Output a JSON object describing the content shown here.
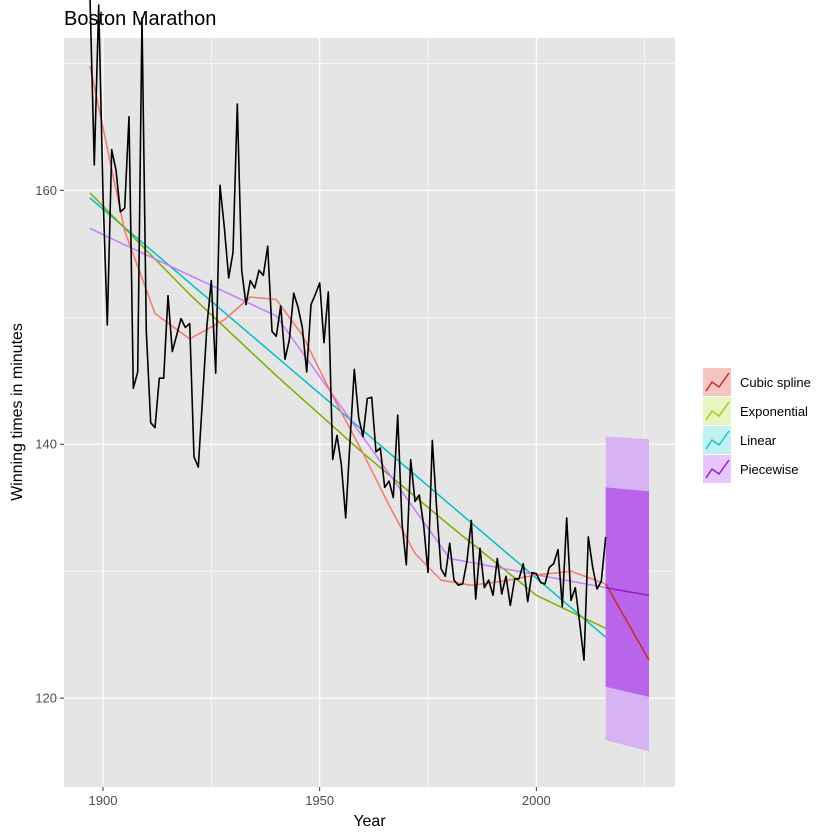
{
  "chart_data": {
    "type": "line",
    "title": "Boston Marathon",
    "xlabel": "Year",
    "ylabel": "Winning times in minutes",
    "xlim": [
      1891,
      2032
    ],
    "ylim": [
      113,
      172
    ],
    "x_ticks": [
      1900,
      1950,
      2000
    ],
    "y_ticks": [
      120,
      140,
      160
    ],
    "grid": true,
    "legend": "right",
    "colors": {
      "panel": "#e5e5e5",
      "grid": "#ffffff",
      "observed": "#000000",
      "cubic": "#f8766d",
      "exponential": "#7cae00",
      "linear": "#00bfc4",
      "piecewise": "#c77cff"
    },
    "observed": {
      "x": [
        1897,
        1898,
        1899,
        1900,
        1901,
        1902,
        1903,
        1904,
        1905,
        1906,
        1907,
        1908,
        1909,
        1910,
        1911,
        1912,
        1913,
        1914,
        1915,
        1916,
        1917,
        1918,
        1919,
        1920,
        1921,
        1922,
        1923,
        1924,
        1925,
        1926,
        1927,
        1928,
        1929,
        1930,
        1931,
        1932,
        1933,
        1934,
        1935,
        1936,
        1937,
        1938,
        1939,
        1940,
        1941,
        1942,
        1943,
        1944,
        1945,
        1946,
        1947,
        1948,
        1949,
        1950,
        1951,
        1952,
        1953,
        1954,
        1955,
        1956,
        1957,
        1958,
        1959,
        1960,
        1961,
        1962,
        1963,
        1964,
        1965,
        1966,
        1967,
        1968,
        1969,
        1970,
        1971,
        1972,
        1973,
        1974,
        1975,
        1976,
        1977,
        1978,
        1979,
        1980,
        1981,
        1982,
        1983,
        1984,
        1985,
        1986,
        1987,
        1988,
        1989,
        1990,
        1991,
        1992,
        1993,
        1994,
        1995,
        1996,
        1997,
        1998,
        1999,
        2000,
        2001,
        2002,
        2003,
        2004,
        2005,
        2006,
        2007,
        2008,
        2009,
        2010,
        2011,
        2012,
        2013,
        2014,
        2015,
        2016
      ],
      "y": [
        175.2,
        162.0,
        174.6,
        159.7,
        149.4,
        163.2,
        161.6,
        158.3,
        158.6,
        165.8,
        144.4,
        145.7,
        173.6,
        148.9,
        141.7,
        141.3,
        145.2,
        145.2,
        151.7,
        147.3,
        148.6,
        149.9,
        149.2,
        149.5,
        139.0,
        138.2,
        143.8,
        149.4,
        152.9,
        145.6,
        160.4,
        157.1,
        153.1,
        155.1,
        166.8,
        153.7,
        151.0,
        152.9,
        152.3,
        153.7,
        153.3,
        155.6,
        148.9,
        148.5,
        150.9,
        146.7,
        148.2,
        151.9,
        150.8,
        149.2,
        145.7,
        151.0,
        151.8,
        152.7,
        148.0,
        152.0,
        138.8,
        140.7,
        138.4,
        134.2,
        140.2,
        145.9,
        142.1,
        140.6,
        143.6,
        143.7,
        139.4,
        139.7,
        136.6,
        137.1,
        135.8,
        142.3,
        133.8,
        130.5,
        138.8,
        135.5,
        136.0,
        133.6,
        129.9,
        140.3,
        134.9,
        130.2,
        129.6,
        132.2,
        129.3,
        128.9,
        129.0,
        130.8,
        134.0,
        127.8,
        131.8,
        128.7,
        129.3,
        128.1,
        131.0,
        128.2,
        129.6,
        127.3,
        129.4,
        129.4,
        130.6,
        127.6,
        129.9,
        129.8,
        129.1,
        129.0,
        130.3,
        130.6,
        131.7,
        127.2,
        134.2,
        127.7,
        128.7,
        125.9,
        123.0,
        132.7,
        130.3,
        128.6,
        129.2,
        132.7
      ]
    },
    "series": [
      {
        "name": "Cubic spline",
        "x": [
          1897,
          1905,
          1912,
          1920,
          1928,
          1934,
          1940,
          1946,
          1953,
          1960,
          1966,
          1972,
          1978,
          1985,
          1992,
          2000,
          2008,
          2016
        ],
        "y": [
          169.8,
          156.8,
          150.3,
          148.3,
          149.8,
          151.6,
          151.4,
          148.6,
          143.8,
          139.3,
          135.2,
          131.4,
          129.3,
          128.9,
          129.2,
          129.7,
          130.0,
          129.0
        ],
        "fc_x": [
          2016,
          2026
        ],
        "fc_y": [
          129.0,
          123.0
        ],
        "fc_color": "#c03030"
      },
      {
        "name": "Exponential",
        "x": [
          1897,
          1920,
          1940,
          1960,
          1980,
          2000,
          2016
        ],
        "y": [
          159.8,
          151.8,
          145.4,
          139.3,
          133.6,
          128.1,
          125.5
        ]
      },
      {
        "name": "Linear",
        "x": [
          1897,
          2016
        ],
        "y": [
          159.4,
          124.8
        ]
      },
      {
        "name": "Piecewise",
        "x": [
          1897,
          1940,
          1980,
          2016
        ],
        "y": [
          157.0,
          150.1,
          131.0,
          128.7
        ],
        "fc_x": [
          2016,
          2026
        ],
        "fc_y": [
          128.7,
          128.1
        ],
        "fc_color": "#9a1cc8"
      }
    ],
    "forecast_band": {
      "x": [
        2016,
        2026
      ],
      "hi95": [
        140.6,
        140.4
      ],
      "lo95": [
        116.7,
        115.8
      ],
      "hi80": [
        136.6,
        136.3
      ],
      "lo80": [
        120.9,
        120.1
      ],
      "color95": "#d8b3f3",
      "color80": "#b965ea"
    }
  }
}
